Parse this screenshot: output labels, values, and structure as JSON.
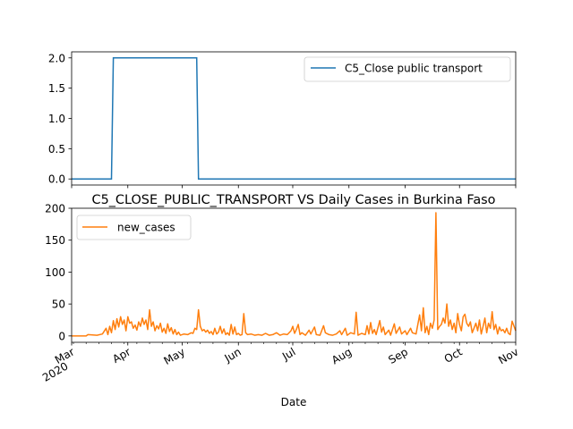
{
  "figure": {
    "title": "C5_CLOSE_PUBLIC_TRANSPORT VS Daily Cases in Burkina Faso",
    "xlabel": "Date"
  },
  "chart_data": [
    {
      "type": "line",
      "series": [
        {
          "name": "C5_Close public transport",
          "color": "#1f77b4",
          "points": [
            [
              "2020-03-01",
              0
            ],
            [
              "2020-03-23",
              0
            ],
            [
              "2020-03-24",
              2
            ],
            [
              "2020-05-09",
              2
            ],
            [
              "2020-05-10",
              0
            ],
            [
              "2020-11-01",
              0
            ]
          ]
        }
      ],
      "xlim": [
        "2020-03-01",
        "2020-11-01"
      ],
      "ylim": [
        -0.1,
        2.1
      ],
      "yticks": [
        "0.0",
        "0.5",
        "1.0",
        "1.5",
        "2.0"
      ],
      "legend": "upper right"
    },
    {
      "type": "line",
      "series": [
        {
          "name": "new_cases",
          "color": "#ff7f0e",
          "points": [
            [
              "2020-03-01",
              0
            ],
            [
              "2020-03-09",
              0
            ],
            [
              "2020-03-10",
              2
            ],
            [
              "2020-03-15",
              1
            ],
            [
              "2020-03-18",
              3
            ],
            [
              "2020-03-20",
              12
            ],
            [
              "2020-03-21",
              2
            ],
            [
              "2020-03-22",
              15
            ],
            [
              "2020-03-23",
              5
            ],
            [
              "2020-03-24",
              24
            ],
            [
              "2020-03-25",
              10
            ],
            [
              "2020-03-26",
              27
            ],
            [
              "2020-03-27",
              14
            ],
            [
              "2020-03-28",
              30
            ],
            [
              "2020-03-29",
              18
            ],
            [
              "2020-03-30",
              25
            ],
            [
              "2020-03-31",
              8
            ],
            [
              "2020-04-01",
              30
            ],
            [
              "2020-04-02",
              20
            ],
            [
              "2020-04-03",
              22
            ],
            [
              "2020-04-04",
              12
            ],
            [
              "2020-04-05",
              17
            ],
            [
              "2020-04-06",
              9
            ],
            [
              "2020-04-07",
              22
            ],
            [
              "2020-04-08",
              15
            ],
            [
              "2020-04-09",
              28
            ],
            [
              "2020-04-10",
              18
            ],
            [
              "2020-04-11",
              25
            ],
            [
              "2020-04-12",
              10
            ],
            [
              "2020-04-13",
              41
            ],
            [
              "2020-04-14",
              15
            ],
            [
              "2020-04-15",
              22
            ],
            [
              "2020-04-16",
              8
            ],
            [
              "2020-04-17",
              16
            ],
            [
              "2020-04-18",
              11
            ],
            [
              "2020-04-19",
              20
            ],
            [
              "2020-04-20",
              6
            ],
            [
              "2020-04-21",
              12
            ],
            [
              "2020-04-22",
              4
            ],
            [
              "2020-04-23",
              19
            ],
            [
              "2020-04-24",
              7
            ],
            [
              "2020-04-25",
              13
            ],
            [
              "2020-04-26",
              3
            ],
            [
              "2020-04-27",
              10
            ],
            [
              "2020-04-28",
              2
            ],
            [
              "2020-04-29",
              6
            ],
            [
              "2020-04-30",
              1
            ],
            [
              "2020-05-02",
              3
            ],
            [
              "2020-05-04",
              2
            ],
            [
              "2020-05-06",
              5
            ],
            [
              "2020-05-07",
              4
            ],
            [
              "2020-05-08",
              12
            ],
            [
              "2020-05-09",
              10
            ],
            [
              "2020-05-10",
              41
            ],
            [
              "2020-05-11",
              15
            ],
            [
              "2020-05-12",
              8
            ],
            [
              "2020-05-13",
              10
            ],
            [
              "2020-05-14",
              6
            ],
            [
              "2020-05-15",
              9
            ],
            [
              "2020-05-16",
              4
            ],
            [
              "2020-05-17",
              7
            ],
            [
              "2020-05-18",
              2
            ],
            [
              "2020-05-19",
              12
            ],
            [
              "2020-05-20",
              3
            ],
            [
              "2020-05-21",
              6
            ],
            [
              "2020-05-22",
              15
            ],
            [
              "2020-05-23",
              4
            ],
            [
              "2020-05-24",
              11
            ],
            [
              "2020-05-25",
              2
            ],
            [
              "2020-05-26",
              5
            ],
            [
              "2020-05-27",
              1
            ],
            [
              "2020-05-28",
              18
            ],
            [
              "2020-05-29",
              3
            ],
            [
              "2020-05-30",
              14
            ],
            [
              "2020-05-31",
              2
            ],
            [
              "2020-06-01",
              4
            ],
            [
              "2020-06-02",
              1
            ],
            [
              "2020-06-03",
              2
            ],
            [
              "2020-06-04",
              35
            ],
            [
              "2020-06-05",
              5
            ],
            [
              "2020-06-06",
              2
            ],
            [
              "2020-06-08",
              3
            ],
            [
              "2020-06-10",
              1
            ],
            [
              "2020-06-12",
              2
            ],
            [
              "2020-06-14",
              1
            ],
            [
              "2020-06-16",
              4
            ],
            [
              "2020-06-18",
              1
            ],
            [
              "2020-06-20",
              2
            ],
            [
              "2020-06-22",
              5
            ],
            [
              "2020-06-24",
              1
            ],
            [
              "2020-06-26",
              3
            ],
            [
              "2020-06-28",
              2
            ],
            [
              "2020-06-30",
              8
            ],
            [
              "2020-07-01",
              15
            ],
            [
              "2020-07-02",
              4
            ],
            [
              "2020-07-03",
              10
            ],
            [
              "2020-07-04",
              18
            ],
            [
              "2020-07-05",
              2
            ],
            [
              "2020-07-06",
              5
            ],
            [
              "2020-07-08",
              1
            ],
            [
              "2020-07-10",
              9
            ],
            [
              "2020-07-11",
              3
            ],
            [
              "2020-07-13",
              14
            ],
            [
              "2020-07-14",
              2
            ],
            [
              "2020-07-16",
              1
            ],
            [
              "2020-07-18",
              16
            ],
            [
              "2020-07-19",
              5
            ],
            [
              "2020-07-21",
              2
            ],
            [
              "2020-07-23",
              1
            ],
            [
              "2020-07-25",
              3
            ],
            [
              "2020-07-27",
              8
            ],
            [
              "2020-07-28",
              2
            ],
            [
              "2020-07-30",
              12
            ],
            [
              "2020-07-31",
              1
            ],
            [
              "2020-08-02",
              5
            ],
            [
              "2020-08-04",
              3
            ],
            [
              "2020-08-05",
              37
            ],
            [
              "2020-08-06",
              1
            ],
            [
              "2020-08-08",
              4
            ],
            [
              "2020-08-10",
              2
            ],
            [
              "2020-08-11",
              16
            ],
            [
              "2020-08-12",
              3
            ],
            [
              "2020-08-13",
              21
            ],
            [
              "2020-08-14",
              4
            ],
            [
              "2020-08-15",
              10
            ],
            [
              "2020-08-16",
              2
            ],
            [
              "2020-08-18",
              24
            ],
            [
              "2020-08-19",
              6
            ],
            [
              "2020-08-20",
              14
            ],
            [
              "2020-08-21",
              2
            ],
            [
              "2020-08-23",
              9
            ],
            [
              "2020-08-24",
              1
            ],
            [
              "2020-08-26",
              19
            ],
            [
              "2020-08-27",
              4
            ],
            [
              "2020-08-29",
              14
            ],
            [
              "2020-08-30",
              3
            ],
            [
              "2020-09-01",
              8
            ],
            [
              "2020-09-02",
              2
            ],
            [
              "2020-09-04",
              12
            ],
            [
              "2020-09-05",
              5
            ],
            [
              "2020-09-07",
              3
            ],
            [
              "2020-09-09",
              33
            ],
            [
              "2020-09-10",
              8
            ],
            [
              "2020-09-11",
              44
            ],
            [
              "2020-09-12",
              5
            ],
            [
              "2020-09-13",
              15
            ],
            [
              "2020-09-14",
              2
            ],
            [
              "2020-09-15",
              20
            ],
            [
              "2020-09-16",
              12
            ],
            [
              "2020-09-17",
              25
            ],
            [
              "2020-09-18",
              193
            ],
            [
              "2020-09-19",
              10
            ],
            [
              "2020-09-20",
              15
            ],
            [
              "2020-09-21",
              18
            ],
            [
              "2020-09-22",
              28
            ],
            [
              "2020-09-23",
              20
            ],
            [
              "2020-09-24",
              50
            ],
            [
              "2020-09-25",
              15
            ],
            [
              "2020-09-26",
              25
            ],
            [
              "2020-09-27",
              10
            ],
            [
              "2020-09-28",
              20
            ],
            [
              "2020-09-29",
              5
            ],
            [
              "2020-09-30",
              35
            ],
            [
              "2020-10-01",
              18
            ],
            [
              "2020-10-02",
              8
            ],
            [
              "2020-10-03",
              30
            ],
            [
              "2020-10-04",
              34
            ],
            [
              "2020-10-05",
              20
            ],
            [
              "2020-10-06",
              15
            ],
            [
              "2020-10-07",
              22
            ],
            [
              "2020-10-08",
              5
            ],
            [
              "2020-10-09",
              12
            ],
            [
              "2020-10-10",
              20
            ],
            [
              "2020-10-11",
              8
            ],
            [
              "2020-10-12",
              25
            ],
            [
              "2020-10-13",
              3
            ],
            [
              "2020-10-14",
              15
            ],
            [
              "2020-10-15",
              28
            ],
            [
              "2020-10-16",
              5
            ],
            [
              "2020-10-17",
              20
            ],
            [
              "2020-10-18",
              12
            ],
            [
              "2020-10-19",
              38
            ],
            [
              "2020-10-20",
              10
            ],
            [
              "2020-10-21",
              18
            ],
            [
              "2020-10-22",
              3
            ],
            [
              "2020-10-23",
              14
            ],
            [
              "2020-10-24",
              8
            ],
            [
              "2020-10-25",
              10
            ],
            [
              "2020-10-26",
              5
            ],
            [
              "2020-10-27",
              12
            ],
            [
              "2020-10-28",
              4
            ],
            [
              "2020-10-29",
              2
            ],
            [
              "2020-10-30",
              23
            ],
            [
              "2020-11-01",
              8
            ]
          ]
        }
      ],
      "xlim": [
        "2020-03-01",
        "2020-11-01"
      ],
      "ylim": [
        -10,
        200
      ],
      "yticks": [
        "0",
        "50",
        "100",
        "150",
        "200"
      ],
      "legend": "upper left",
      "xticks": [
        {
          "date": "2020-03-01",
          "label": "Mar",
          "sub": "2020"
        },
        {
          "date": "2020-04-01",
          "label": "Apr"
        },
        {
          "date": "2020-05-01",
          "label": "May"
        },
        {
          "date": "2020-06-01",
          "label": "Jun"
        },
        {
          "date": "2020-07-01",
          "label": "Jul"
        },
        {
          "date": "2020-08-01",
          "label": "Aug"
        },
        {
          "date": "2020-09-01",
          "label": "Sep"
        },
        {
          "date": "2020-10-01",
          "label": "Oct"
        },
        {
          "date": "2020-11-01",
          "label": "Nov"
        }
      ]
    }
  ]
}
